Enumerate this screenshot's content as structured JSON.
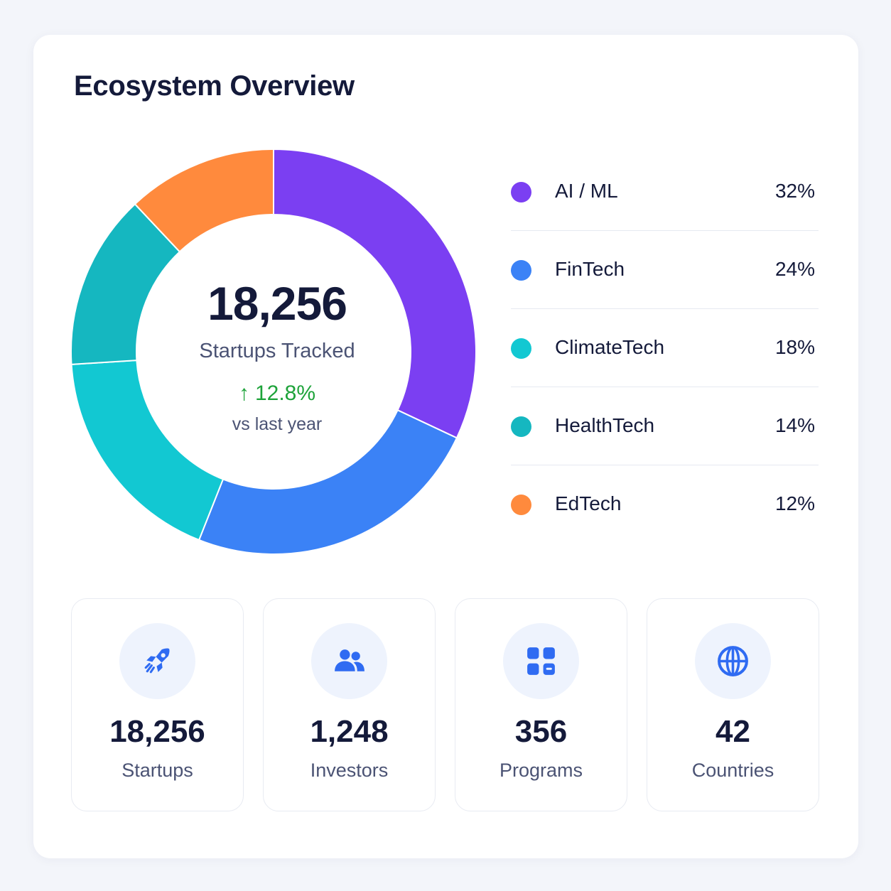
{
  "card": {
    "title": "Ecosystem Overview"
  },
  "center": {
    "value": "18,256",
    "label": "Startups Tracked",
    "growth": "12.8%",
    "growth_sub": "vs last year"
  },
  "chart_data": {
    "type": "pie",
    "variant": "donut",
    "title": "Ecosystem Overview",
    "categories": [
      "AI / ML",
      "FinTech",
      "ClimateTech",
      "HealthTech",
      "EdTech"
    ],
    "values": [
      32,
      24,
      18,
      14,
      12
    ],
    "value_labels": [
      "32%",
      "24%",
      "18%",
      "14%",
      "12%"
    ],
    "colors": [
      "#7b3ff2",
      "#3b82f6",
      "#12c8d2",
      "#15b7c0",
      "#ff8a3d"
    ],
    "legend_position": "right"
  },
  "legend": {
    "items": [
      {
        "name": "AI / ML",
        "pct": "32%",
        "color": "#7b3ff2"
      },
      {
        "name": "FinTech",
        "pct": "24%",
        "color": "#3b82f6"
      },
      {
        "name": "ClimateTech",
        "pct": "18%",
        "color": "#12c8d2"
      },
      {
        "name": "HealthTech",
        "pct": "14%",
        "color": "#15b7c0"
      },
      {
        "name": "EdTech",
        "pct": "12%",
        "color": "#ff8a3d"
      }
    ]
  },
  "stats": [
    {
      "value": "18,256",
      "label": "Startups",
      "icon": "rocket-icon"
    },
    {
      "value": "1,248",
      "label": "Investors",
      "icon": "users-icon"
    },
    {
      "value": "356",
      "label": "Programs",
      "icon": "grid-icon"
    },
    {
      "value": "42",
      "label": "Countries",
      "icon": "globe-icon"
    }
  ],
  "colors": {
    "accent": "#2f6bf2",
    "growth": "#1ea33a",
    "icon_bg": "#eef3fd"
  }
}
